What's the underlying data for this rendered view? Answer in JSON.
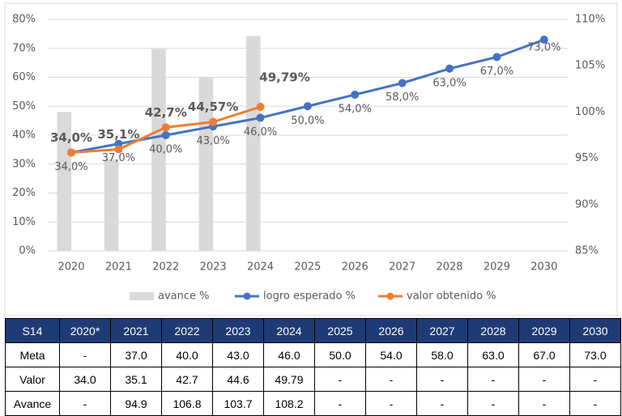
{
  "chart_data": {
    "type": "combo",
    "categories": [
      "2020",
      "2021",
      "2022",
      "2023",
      "2024",
      "2025",
      "2026",
      "2027",
      "2028",
      "2029",
      "2030"
    ],
    "series": [
      {
        "name": "avance %",
        "type": "bar",
        "axis": "y2",
        "color": "#d9d9d9",
        "values": [
          100,
          94.9,
          106.8,
          103.7,
          108.2,
          null,
          null,
          null,
          null,
          null,
          null
        ]
      },
      {
        "name": "logro esperado %",
        "type": "line",
        "color": "#4472c4",
        "values": [
          34,
          37,
          40,
          43,
          46,
          50,
          54,
          58,
          63,
          67,
          73
        ],
        "value_labels": [
          "34,0%",
          "37,0%",
          "40,0%",
          "43,0%",
          "46,0%",
          "50,0%",
          "54,0%",
          "58,0%",
          "63,0%",
          "67,0%",
          "73,0%"
        ]
      },
      {
        "name": "valor obtenido %",
        "type": "line",
        "color": "#ed7d31",
        "values": [
          34.0,
          35.1,
          42.7,
          44.57,
          49.79,
          null,
          null,
          null,
          null,
          null,
          null
        ],
        "value_labels": [
          "34,0%",
          "35,1%",
          "42,7%",
          "44,57%",
          "49,79%",
          null,
          null,
          null,
          null,
          null,
          null
        ]
      }
    ],
    "ylim": [
      0,
      80
    ],
    "yticks": [
      {
        "value": 0,
        "label": "0%"
      },
      {
        "value": 10,
        "label": "10%"
      },
      {
        "value": 20,
        "label": "20%"
      },
      {
        "value": 30,
        "label": "30%"
      },
      {
        "value": 40,
        "label": "40%"
      },
      {
        "value": 50,
        "label": "50%"
      },
      {
        "value": 60,
        "label": "60%"
      },
      {
        "value": 70,
        "label": "70%"
      },
      {
        "value": 80,
        "label": "80%"
      }
    ],
    "y2lim": [
      85,
      110
    ],
    "y2ticks": [
      {
        "value": 85,
        "label": "85%"
      },
      {
        "value": 90,
        "label": "90%"
      },
      {
        "value": 95,
        "label": "95%"
      },
      {
        "value": 100,
        "label": "100%"
      },
      {
        "value": 105,
        "label": "105%"
      },
      {
        "value": 110,
        "label": "110%"
      }
    ],
    "grid": true,
    "legend": "bottom"
  },
  "table": {
    "header": [
      "S14",
      "2020*",
      "2021",
      "2022",
      "2023",
      "2024",
      "2025",
      "2026",
      "2027",
      "2028",
      "2029",
      "2030"
    ],
    "rows": [
      [
        "Meta",
        "-",
        "37.0",
        "40.0",
        "43.0",
        "46.0",
        "50.0",
        "54.0",
        "58.0",
        "63.0",
        "67.0",
        "73.0"
      ],
      [
        "Valor",
        "34.0",
        "35.1",
        "42.7",
        "44.6",
        "49.79",
        "-",
        "-",
        "-",
        "-",
        "-",
        "-"
      ],
      [
        "Avance",
        "-",
        "94.9",
        "106.8",
        "103.7",
        "108.2",
        "-",
        "-",
        "-",
        "-",
        "-",
        "-"
      ]
    ]
  }
}
